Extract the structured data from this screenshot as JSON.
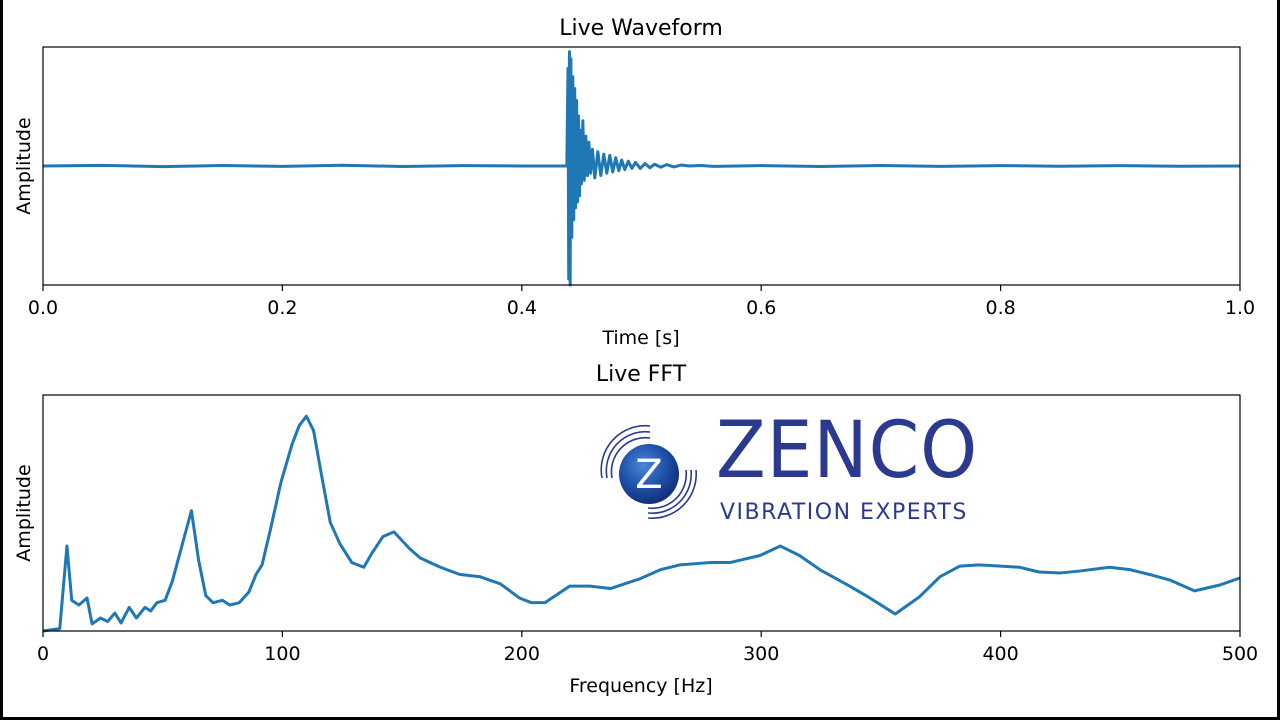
{
  "logo": {
    "brand": "ZENCO",
    "tagline": "VIBRATION EXPERTS",
    "emblem_letter": "Z",
    "brand_color": "#2b3a8f"
  },
  "colors": {
    "line": "#1f77b4",
    "axes": "#000000"
  },
  "chart_data": [
    {
      "type": "line",
      "title": "Live Waveform",
      "xlabel": "Time [s]",
      "ylabel": "Amplitude",
      "xlim": [
        0.0,
        1.0
      ],
      "ylim": [
        -1.0,
        1.0
      ],
      "xticks": [
        "0.0",
        "0.2",
        "0.4",
        "0.6",
        "0.8",
        "1.0"
      ],
      "xtick_values": [
        0.0,
        0.2,
        0.4,
        0.6,
        0.8,
        1.0
      ],
      "yticks": [],
      "grid": false,
      "impact_time": 0.4386,
      "x": [
        0.0,
        0.05,
        0.1,
        0.15,
        0.2,
        0.25,
        0.3,
        0.35,
        0.4,
        0.4376,
        0.4386,
        0.4392,
        0.4398,
        0.4404,
        0.441,
        0.4418,
        0.4426,
        0.4434,
        0.4442,
        0.445,
        0.4458,
        0.4466,
        0.4474,
        0.4482,
        0.449,
        0.4498,
        0.451,
        0.4522,
        0.4535,
        0.4548,
        0.456,
        0.4575,
        0.459,
        0.461,
        0.4635,
        0.466,
        0.4685,
        0.471,
        0.4735,
        0.476,
        0.4785,
        0.481,
        0.4835,
        0.486,
        0.489,
        0.492,
        0.495,
        0.499,
        0.503,
        0.507,
        0.511,
        0.516,
        0.521,
        0.527,
        0.533,
        0.54,
        0.55,
        0.56,
        0.6,
        0.65,
        0.7,
        0.75,
        0.8,
        0.85,
        0.9,
        0.95,
        1.0
      ],
      "y": [
        0.0,
        0.005,
        -0.005,
        0.004,
        -0.003,
        0.006,
        -0.004,
        0.003,
        0.0,
        0.0,
        0.82,
        -0.95,
        0.96,
        -1.0,
        0.9,
        -0.6,
        0.75,
        -0.45,
        0.65,
        -0.35,
        0.55,
        -0.3,
        0.42,
        -0.25,
        0.3,
        -0.15,
        0.38,
        -0.12,
        0.25,
        -0.08,
        0.2,
        -0.06,
        0.14,
        -0.1,
        0.12,
        -0.08,
        0.1,
        -0.06,
        0.09,
        -0.05,
        0.07,
        -0.04,
        0.05,
        -0.03,
        0.04,
        -0.02,
        0.03,
        -0.02,
        0.02,
        -0.015,
        0.015,
        -0.01,
        0.012,
        -0.008,
        0.008,
        0.0,
        0.004,
        -0.003,
        0.003,
        -0.004,
        0.004,
        -0.003,
        0.003,
        -0.002,
        0.003,
        -0.002,
        0.0
      ]
    },
    {
      "type": "line",
      "title": "Live FFT",
      "xlabel": "Frequency [Hz]",
      "ylabel": "Amplitude",
      "xlim": [
        0,
        500
      ],
      "ylim": [
        0,
        1
      ],
      "xticks": [
        "0",
        "100",
        "200",
        "300",
        "400",
        "500"
      ],
      "xtick_values": [
        0,
        100,
        200,
        300,
        400,
        500
      ],
      "yticks": [],
      "grid": false,
      "x": [
        0,
        7,
        10,
        12,
        15,
        18.4,
        20.5,
        24,
        27,
        30,
        32.6,
        36,
        39,
        42.6,
        45,
        47.6,
        51,
        54,
        58,
        62,
        65,
        68,
        71,
        75,
        78,
        82,
        86,
        89,
        91.5,
        95,
        99.4,
        104,
        107,
        110,
        113,
        116,
        120,
        124,
        129,
        134,
        137.4,
        142,
        146.6,
        153,
        157.5,
        166,
        174,
        182.5,
        191,
        199,
        204,
        209.7,
        220,
        228.5,
        237,
        249,
        258,
        266,
        278.6,
        287,
        299.5,
        308,
        316,
        324.5,
        337,
        345.4,
        356,
        366,
        374.7,
        383,
        391,
        400,
        408,
        416,
        425,
        433,
        445.5,
        454,
        462,
        470.7,
        481,
        491.6,
        500
      ],
      "y": [
        0.0,
        0.01,
        0.36,
        0.13,
        0.11,
        0.14,
        0.03,
        0.055,
        0.04,
        0.076,
        0.034,
        0.1,
        0.055,
        0.1,
        0.085,
        0.12,
        0.13,
        0.21,
        0.36,
        0.51,
        0.3,
        0.15,
        0.12,
        0.13,
        0.11,
        0.12,
        0.165,
        0.24,
        0.28,
        0.43,
        0.63,
        0.79,
        0.87,
        0.91,
        0.85,
        0.68,
        0.46,
        0.37,
        0.29,
        0.27,
        0.33,
        0.4,
        0.42,
        0.35,
        0.31,
        0.27,
        0.24,
        0.23,
        0.2,
        0.14,
        0.12,
        0.12,
        0.19,
        0.19,
        0.18,
        0.22,
        0.26,
        0.28,
        0.29,
        0.29,
        0.32,
        0.36,
        0.32,
        0.26,
        0.19,
        0.14,
        0.072,
        0.144,
        0.23,
        0.275,
        0.28,
        0.275,
        0.27,
        0.25,
        0.246,
        0.254,
        0.27,
        0.26,
        0.24,
        0.216,
        0.17,
        0.195,
        0.225
      ]
    }
  ]
}
